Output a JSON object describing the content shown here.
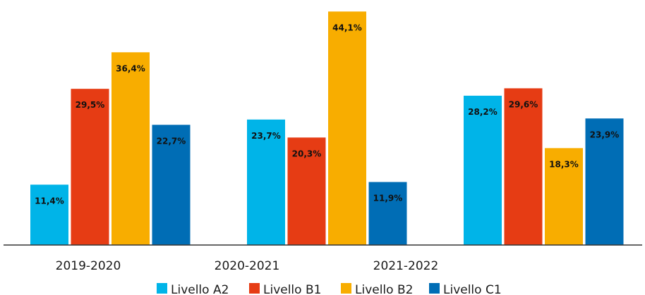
{
  "chart_data": {
    "type": "bar",
    "title": "",
    "xlabel": "",
    "ylabel": "",
    "ylim": [
      0,
      46
    ],
    "grid": false,
    "legend_position": "bottom",
    "categories": [
      "2019-2020",
      "2020-2021",
      "2021-2022"
    ],
    "series": [
      {
        "name": "Livello A2",
        "color": "#00b4e8",
        "values": [
          11.4,
          23.7,
          28.2
        ],
        "labels": [
          "11,4%",
          "23,7%",
          "28,2%"
        ]
      },
      {
        "name": "Livello B1",
        "color": "#e63c14",
        "values": [
          29.5,
          20.3,
          29.6
        ],
        "labels": [
          "29,5%",
          "20,3%",
          "29,6%"
        ]
      },
      {
        "name": "Livello B2",
        "color": "#f8ad00",
        "values": [
          36.4,
          44.1,
          18.3
        ],
        "labels": [
          "36,4%",
          "44,1%",
          "18,3%"
        ]
      },
      {
        "name": "Livello C1",
        "color": "#006db5",
        "values": [
          22.7,
          11.9,
          23.9
        ],
        "labels": [
          "22,7%",
          "11,9%",
          "23,9%"
        ]
      }
    ]
  }
}
